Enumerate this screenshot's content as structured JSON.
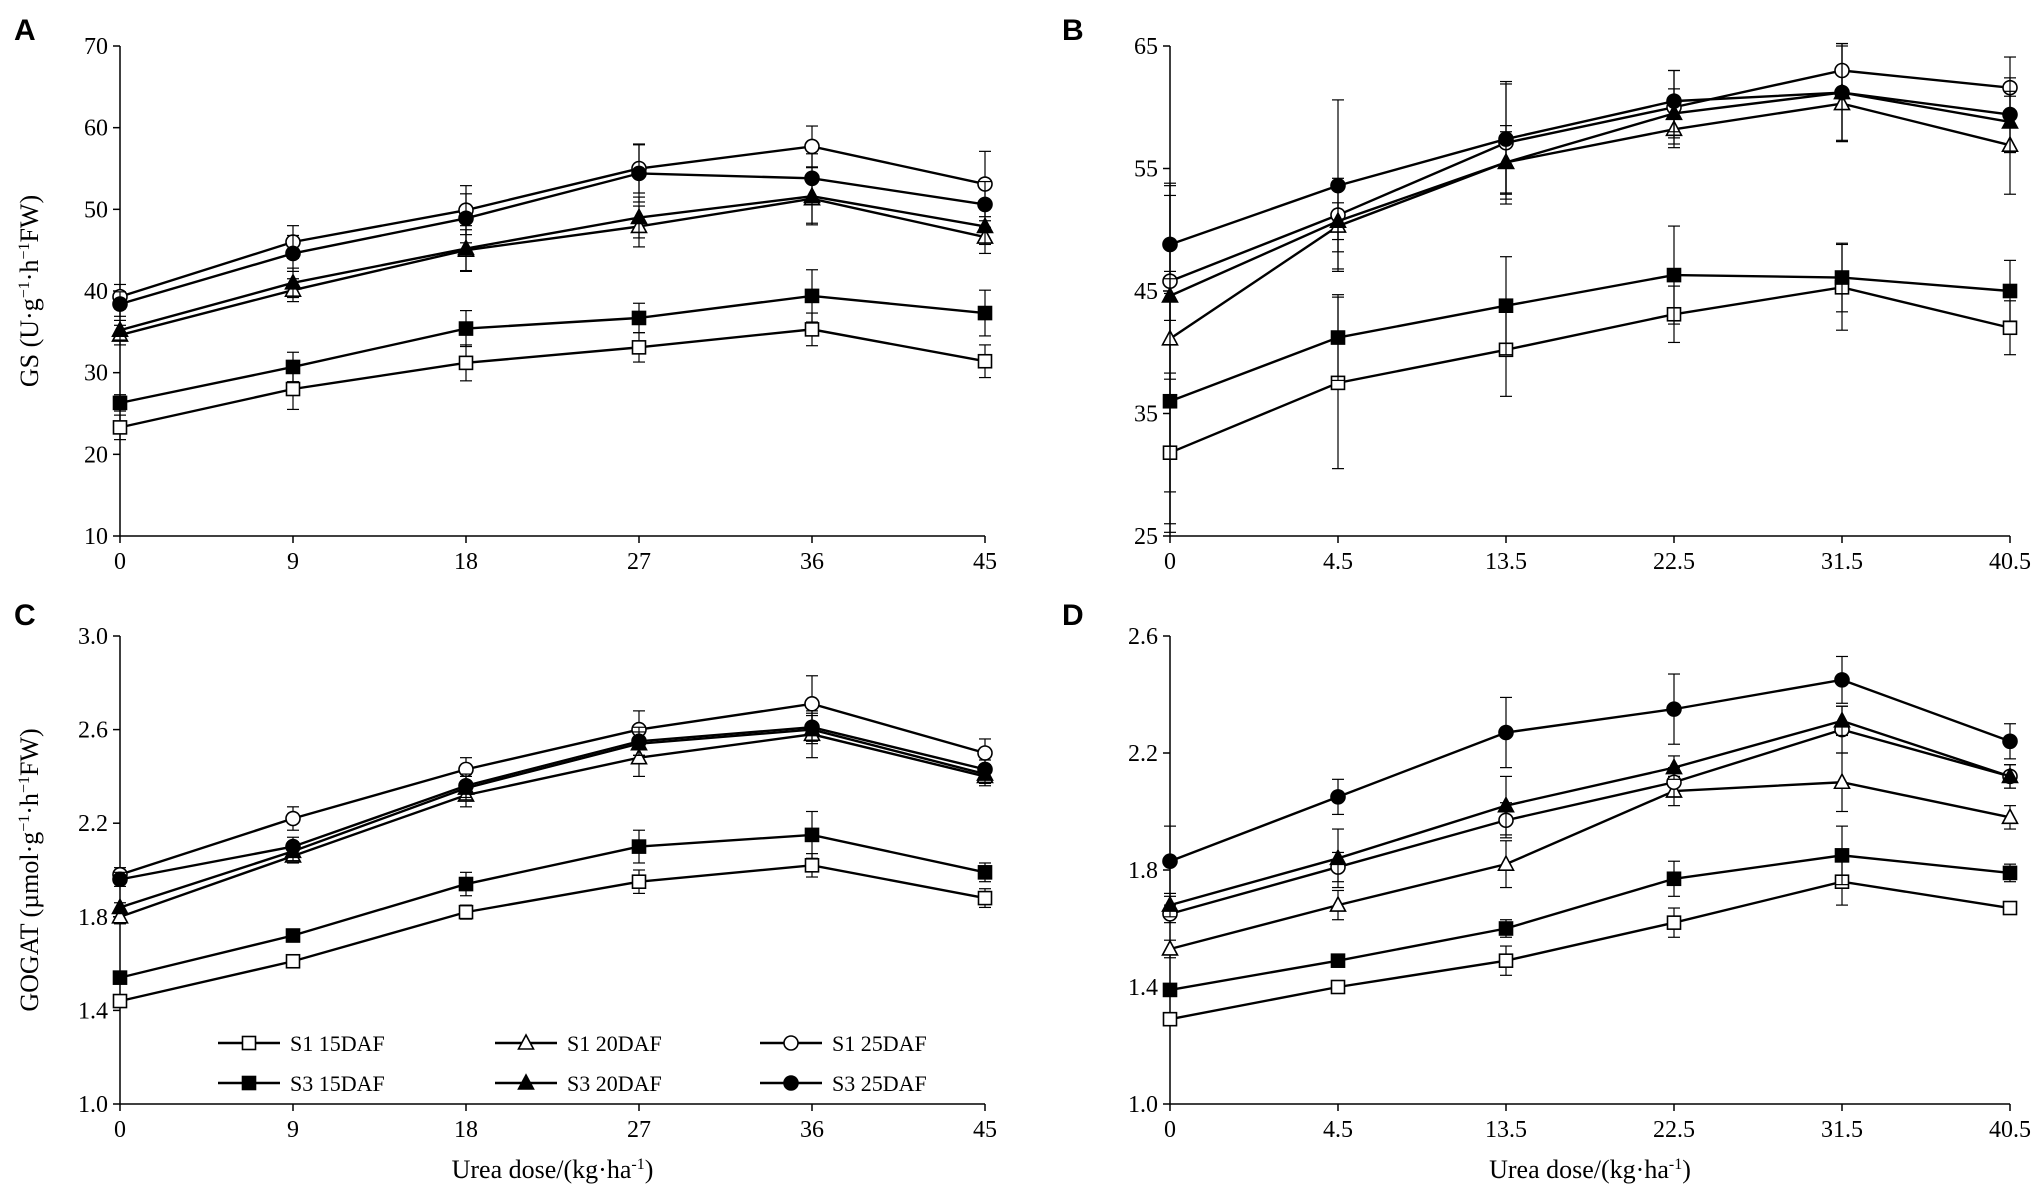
{
  "legend": [
    {
      "id": "s1_15",
      "label": "S1 15DAF",
      "marker": "square",
      "filled": false
    },
    {
      "id": "s1_20",
      "label": "S1 20DAF",
      "marker": "triangle",
      "filled": false
    },
    {
      "id": "s1_25",
      "label": "S1 25DAF",
      "marker": "circle",
      "filled": false
    },
    {
      "id": "s3_15",
      "label": "S3 15DAF",
      "marker": "square",
      "filled": true
    },
    {
      "id": "s3_20",
      "label": "S3 20DAF",
      "marker": "triangle",
      "filled": true
    },
    {
      "id": "s3_25",
      "label": "S3 25DAF",
      "marker": "circle",
      "filled": true
    }
  ],
  "line_color": "#000000",
  "chart_data": [
    {
      "panel": "A",
      "type": "line",
      "xlabel": "",
      "ylabel_parts": {
        "pre": "GS (U·g",
        "sup1": "−1",
        "mid": "·h",
        "sup2": "−1",
        "post": "FW)"
      },
      "categories": [
        "0",
        "9",
        "18",
        "27",
        "36",
        "45"
      ],
      "ylim": [
        10,
        70
      ],
      "yticks": [
        "10",
        "20",
        "30",
        "40",
        "50",
        "60",
        "70"
      ],
      "series": [
        {
          "id": "s1_15",
          "values": [
            23.3,
            28.0,
            31.2,
            33.1,
            35.3,
            31.4
          ],
          "errors": [
            1.5,
            2.5,
            2.2,
            1.8,
            2.0,
            2.0
          ]
        },
        {
          "id": "s1_20",
          "values": [
            34.6,
            40.1,
            45.0,
            47.9,
            51.3,
            46.6
          ],
          "errors": [
            1.2,
            1.4,
            2.5,
            2.5,
            3.0,
            2.0
          ]
        },
        {
          "id": "s1_25",
          "values": [
            39.3,
            46.0,
            49.9,
            55.0,
            57.7,
            53.1
          ],
          "errors": [
            1.5,
            2.0,
            3.0,
            3.0,
            2.5,
            4.0
          ]
        },
        {
          "id": "s3_15",
          "values": [
            26.3,
            30.7,
            35.4,
            36.7,
            39.4,
            37.3
          ],
          "errors": [
            1.0,
            1.8,
            2.2,
            1.8,
            3.2,
            2.8
          ]
        },
        {
          "id": "s3_20",
          "values": [
            35.2,
            41.0,
            45.2,
            49.0,
            51.6,
            47.9
          ],
          "errors": [
            1.2,
            1.8,
            2.8,
            2.5,
            3.5,
            2.2
          ]
        },
        {
          "id": "s3_25",
          "values": [
            38.4,
            44.6,
            48.9,
            54.4,
            53.8,
            50.6
          ],
          "errors": [
            1.5,
            2.2,
            3.0,
            3.5,
            3.0,
            2.8
          ]
        }
      ]
    },
    {
      "panel": "B",
      "type": "line",
      "xlabel": "",
      "ylabel_parts": null,
      "categories": [
        "0",
        "4.5",
        "13.5",
        "22.5",
        "31.5",
        "40.5"
      ],
      "ylim": [
        25,
        65
      ],
      "yticks": [
        "25",
        "35",
        "45",
        "55",
        "65"
      ],
      "series": [
        {
          "id": "s1_15",
          "values": [
            31.8,
            37.5,
            40.2,
            43.1,
            45.3,
            42.0
          ],
          "errors": [
            6.5,
            7.0,
            3.8,
            2.3,
            3.5,
            2.2
          ]
        },
        {
          "id": "s1_20",
          "values": [
            41.1,
            50.3,
            55.5,
            58.2,
            60.3,
            56.9
          ],
          "errors": [
            12.5,
            3.5,
            2.5,
            1.5,
            3.0,
            4.0
          ]
        },
        {
          "id": "s1_25",
          "values": [
            45.8,
            51.2,
            57.1,
            60.0,
            63.0,
            61.6
          ],
          "errors": [
            8.0,
            3.0,
            5.0,
            3.0,
            2.0,
            2.5
          ]
        },
        {
          "id": "s3_15",
          "values": [
            36.0,
            41.2,
            43.8,
            46.3,
            46.1,
            45.0
          ],
          "errors": [
            10.0,
            3.5,
            4.0,
            4.0,
            2.8,
            2.5
          ]
        },
        {
          "id": "s3_20",
          "values": [
            44.6,
            50.7,
            55.5,
            59.5,
            61.2,
            58.8
          ],
          "errors": [
            2.0,
            1.5,
            3.0,
            2.0,
            4.0,
            2.5
          ]
        },
        {
          "id": "s3_25",
          "values": [
            48.8,
            53.6,
            57.4,
            60.5,
            61.2,
            59.4
          ],
          "errors": [
            4.0,
            7.0,
            4.5,
            2.5,
            4.0,
            3.0
          ]
        }
      ]
    },
    {
      "panel": "C",
      "type": "line",
      "xlabel_parts": {
        "pre": "Urea dose/(kg·ha",
        "sup": "-1",
        "post": ")"
      },
      "ylabel_parts": {
        "pre": "GOGAT (µmol·g",
        "sup1": "−1",
        "mid": "·h",
        "sup2": "−1",
        "post": "FW)"
      },
      "categories": [
        "0",
        "9",
        "18",
        "27",
        "36",
        "45"
      ],
      "ylim": [
        1.0,
        3.0
      ],
      "yticks": [
        "1.0",
        "1.4",
        "1.8",
        "2.2",
        "2.6",
        "3.0"
      ],
      "series": [
        {
          "id": "s1_15",
          "values": [
            1.44,
            1.61,
            1.82,
            1.95,
            2.02,
            1.88
          ],
          "errors": [
            0.02,
            0.02,
            0.03,
            0.05,
            0.05,
            0.04
          ]
        },
        {
          "id": "s1_20",
          "values": [
            1.8,
            2.06,
            2.32,
            2.48,
            2.58,
            2.4
          ],
          "errors": [
            0.03,
            0.03,
            0.05,
            0.08,
            0.1,
            0.04
          ]
        },
        {
          "id": "s1_25",
          "values": [
            1.98,
            2.22,
            2.43,
            2.6,
            2.71,
            2.5
          ],
          "errors": [
            0.03,
            0.05,
            0.05,
            0.08,
            0.12,
            0.06
          ]
        },
        {
          "id": "s3_15",
          "values": [
            1.54,
            1.72,
            1.94,
            2.1,
            2.15,
            1.99
          ],
          "errors": [
            0.02,
            0.02,
            0.05,
            0.07,
            0.1,
            0.04
          ]
        },
        {
          "id": "s3_20",
          "values": [
            1.84,
            2.08,
            2.35,
            2.54,
            2.6,
            2.41
          ],
          "errors": [
            0.02,
            0.04,
            0.05,
            0.05,
            0.06,
            0.04
          ]
        },
        {
          "id": "s3_25",
          "values": [
            1.96,
            2.1,
            2.36,
            2.55,
            2.61,
            2.43
          ],
          "errors": [
            0.03,
            0.04,
            0.05,
            0.06,
            0.06,
            0.04
          ]
        }
      ]
    },
    {
      "panel": "D",
      "type": "line",
      "xlabel_parts": {
        "pre": "Urea dose/(kg·ha",
        "sup": "-1",
        "post": ")"
      },
      "ylabel_parts": null,
      "categories": [
        "0",
        "4.5",
        "13.5",
        "22.5",
        "31.5",
        "40.5"
      ],
      "ylim": [
        1.0,
        2.6
      ],
      "yticks": [
        "1.0",
        "1.4",
        "1.8",
        "2.2",
        "2.6"
      ],
      "series": [
        {
          "id": "s1_15",
          "values": [
            1.29,
            1.4,
            1.49,
            1.62,
            1.76,
            1.67
          ],
          "errors": [
            0.02,
            0.02,
            0.05,
            0.05,
            0.08,
            0.02
          ]
        },
        {
          "id": "s1_20",
          "values": [
            1.53,
            1.68,
            1.82,
            2.07,
            2.1,
            1.98
          ],
          "errors": [
            0.03,
            0.05,
            0.08,
            0.05,
            0.1,
            0.04
          ]
        },
        {
          "id": "s1_25",
          "values": [
            1.65,
            1.81,
            1.97,
            2.1,
            2.28,
            2.12
          ],
          "errors": [
            0.03,
            0.05,
            0.06,
            0.05,
            0.08,
            0.04
          ]
        },
        {
          "id": "s3_15",
          "values": [
            1.39,
            1.49,
            1.6,
            1.77,
            1.85,
            1.79
          ],
          "errors": [
            0.02,
            0.02,
            0.03,
            0.06,
            0.1,
            0.03
          ]
        },
        {
          "id": "s3_20",
          "values": [
            1.68,
            1.84,
            2.02,
            2.15,
            2.31,
            2.12
          ],
          "errors": [
            0.04,
            0.1,
            0.1,
            0.04,
            0.05,
            0.04
          ]
        },
        {
          "id": "s3_25",
          "values": [
            1.83,
            2.05,
            2.27,
            2.35,
            2.45,
            2.24
          ],
          "errors": [
            0.12,
            0.06,
            0.12,
            0.12,
            0.08,
            0.06
          ]
        }
      ]
    }
  ]
}
